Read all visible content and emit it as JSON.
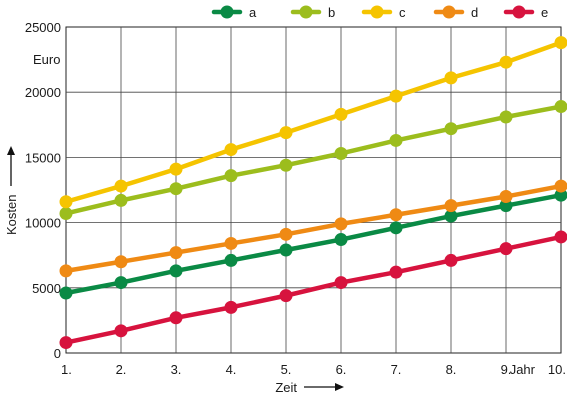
{
  "chart_data": {
    "type": "line",
    "xlabel": "Zeit",
    "ylabel": "Kosten",
    "yunit": "Euro",
    "x_last_suffix": "Jahr",
    "categories": [
      "1.",
      "2.",
      "3.",
      "4.",
      "5.",
      "6.",
      "7.",
      "8.",
      "9.",
      "10."
    ],
    "ylim": [
      0,
      25000
    ],
    "yticks": [
      0,
      5000,
      10000,
      15000,
      20000,
      25000
    ],
    "grid": true,
    "legend_position": "top-right",
    "series": [
      {
        "name": "a",
        "color": "#0a8a45",
        "values": [
          4600,
          5400,
          6300,
          7100,
          7900,
          8700,
          9600,
          10500,
          11300,
          12100
        ]
      },
      {
        "name": "b",
        "color": "#9cbd1d",
        "values": [
          10700,
          11700,
          12600,
          13600,
          14400,
          15300,
          16300,
          17200,
          18100,
          18900
        ]
      },
      {
        "name": "c",
        "color": "#f5c400",
        "values": [
          11600,
          12800,
          14100,
          15600,
          16900,
          18300,
          19700,
          21100,
          22300,
          23800
        ]
      },
      {
        "name": "d",
        "color": "#ef8a14",
        "values": [
          6300,
          7000,
          7700,
          8400,
          9100,
          9900,
          10600,
          11300,
          12000,
          12800
        ]
      },
      {
        "name": "e",
        "color": "#d7133e",
        "values": [
          800,
          1700,
          2700,
          3500,
          4400,
          5400,
          6200,
          7100,
          8000,
          8900
        ]
      }
    ]
  }
}
